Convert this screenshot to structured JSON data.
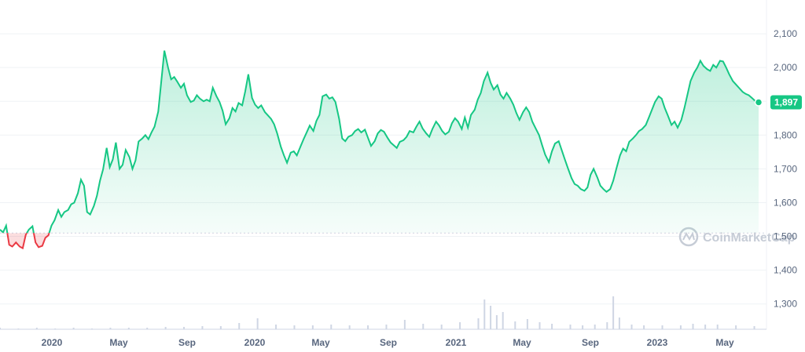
{
  "chart_data": {
    "type": "area",
    "title": "",
    "xlabel": "",
    "ylabel": "",
    "ylim": [
      1225,
      2200
    ],
    "y_ticks": [
      "1,300",
      "1,400",
      "1,500",
      "1,600",
      "1,700",
      "1,800",
      "1,900",
      "2,000",
      "2,100"
    ],
    "y_tick_values": [
      1300,
      1400,
      1500,
      1600,
      1700,
      1800,
      1900,
      2000,
      2100
    ],
    "x_ticks": [
      "2020",
      "May",
      "Sep",
      "2020",
      "May",
      "Sep",
      "2021",
      "May",
      "Sep",
      "2023",
      "May"
    ],
    "baseline": 1510,
    "grid": true,
    "colors": {
      "up": "#16c784",
      "down": "#ea3943",
      "volume": "#cfd6e4",
      "axis_text": "#58667e",
      "grid": "#eff2f5",
      "baseline": "#cfd6e4"
    },
    "current_price": 1897,
    "current_price_label": "1,897",
    "watermark": "CoinMarketCap",
    "series": [
      {
        "name": "",
        "values": [
          [
            0.0,
            1520
          ],
          [
            0.5,
            1512
          ],
          [
            1.0,
            1532
          ],
          [
            1.5,
            1475
          ],
          [
            2.0,
            1470
          ],
          [
            2.6,
            1482
          ],
          [
            3.2,
            1470
          ],
          [
            3.7,
            1465
          ],
          [
            4.2,
            1505
          ],
          [
            4.7,
            1520
          ],
          [
            5.3,
            1530
          ],
          [
            5.8,
            1482
          ],
          [
            6.3,
            1468
          ],
          [
            6.9,
            1472
          ],
          [
            7.4,
            1496
          ],
          [
            7.9,
            1503
          ],
          [
            8.4,
            1532
          ],
          [
            8.9,
            1548
          ],
          [
            9.5,
            1578
          ],
          [
            10.0,
            1558
          ],
          [
            10.5,
            1572
          ],
          [
            11.1,
            1578
          ],
          [
            11.6,
            1595
          ],
          [
            12.1,
            1600
          ],
          [
            12.7,
            1628
          ],
          [
            13.2,
            1668
          ],
          [
            13.7,
            1650
          ],
          [
            14.2,
            1572
          ],
          [
            14.7,
            1565
          ],
          [
            15.3,
            1590
          ],
          [
            15.8,
            1620
          ],
          [
            16.3,
            1665
          ],
          [
            16.8,
            1698
          ],
          [
            17.4,
            1762
          ],
          [
            17.9,
            1705
          ],
          [
            18.4,
            1728
          ],
          [
            18.9,
            1778
          ],
          [
            19.5,
            1700
          ],
          [
            20.0,
            1712
          ],
          [
            20.5,
            1756
          ],
          [
            21.1,
            1735
          ],
          [
            21.6,
            1700
          ],
          [
            22.1,
            1725
          ],
          [
            22.6,
            1781
          ],
          [
            23.2,
            1790
          ],
          [
            23.7,
            1800
          ],
          [
            24.2,
            1788
          ],
          [
            24.7,
            1808
          ],
          [
            25.2,
            1825
          ],
          [
            25.8,
            1870
          ],
          [
            26.3,
            1960
          ],
          [
            26.8,
            2050
          ],
          [
            27.4,
            2000
          ],
          [
            27.9,
            1965
          ],
          [
            28.4,
            1972
          ],
          [
            28.9,
            1958
          ],
          [
            29.5,
            1940
          ],
          [
            30.0,
            1952
          ],
          [
            30.5,
            1918
          ],
          [
            31.1,
            1898
          ],
          [
            31.6,
            1902
          ],
          [
            32.1,
            1918
          ],
          [
            32.6,
            1908
          ],
          [
            33.2,
            1900
          ],
          [
            33.7,
            1905
          ],
          [
            34.2,
            1900
          ],
          [
            34.7,
            1940
          ],
          [
            35.3,
            1915
          ],
          [
            35.8,
            1898
          ],
          [
            36.3,
            1872
          ],
          [
            36.8,
            1832
          ],
          [
            37.4,
            1850
          ],
          [
            37.9,
            1880
          ],
          [
            38.4,
            1870
          ],
          [
            38.9,
            1895
          ],
          [
            39.5,
            1888
          ],
          [
            40.0,
            1930
          ],
          [
            40.5,
            1980
          ],
          [
            41.1,
            1910
          ],
          [
            41.6,
            1890
          ],
          [
            42.1,
            1880
          ],
          [
            42.6,
            1888
          ],
          [
            43.2,
            1868
          ],
          [
            43.7,
            1858
          ],
          [
            44.2,
            1848
          ],
          [
            44.7,
            1832
          ],
          [
            45.2,
            1805
          ],
          [
            45.8,
            1765
          ],
          [
            46.3,
            1740
          ],
          [
            46.8,
            1718
          ],
          [
            47.4,
            1748
          ],
          [
            47.9,
            1752
          ],
          [
            48.4,
            1740
          ],
          [
            48.9,
            1762
          ],
          [
            49.5,
            1788
          ],
          [
            50.0,
            1808
          ],
          [
            50.5,
            1828
          ],
          [
            51.1,
            1812
          ],
          [
            51.6,
            1842
          ],
          [
            52.1,
            1860
          ],
          [
            52.6,
            1915
          ],
          [
            53.2,
            1920
          ],
          [
            53.7,
            1908
          ],
          [
            54.2,
            1912
          ],
          [
            54.7,
            1898
          ],
          [
            55.3,
            1848
          ],
          [
            55.8,
            1790
          ],
          [
            56.3,
            1782
          ],
          [
            56.8,
            1795
          ],
          [
            57.4,
            1800
          ],
          [
            57.9,
            1812
          ],
          [
            58.4,
            1818
          ],
          [
            58.9,
            1808
          ],
          [
            59.5,
            1816
          ],
          [
            60.0,
            1792
          ],
          [
            60.5,
            1768
          ],
          [
            61.1,
            1782
          ],
          [
            61.6,
            1805
          ],
          [
            62.1,
            1815
          ],
          [
            62.6,
            1810
          ],
          [
            63.2,
            1792
          ],
          [
            63.7,
            1778
          ],
          [
            64.2,
            1770
          ],
          [
            64.7,
            1762
          ],
          [
            65.2,
            1780
          ],
          [
            65.8,
            1785
          ],
          [
            66.3,
            1795
          ],
          [
            66.8,
            1812
          ],
          [
            67.4,
            1808
          ],
          [
            67.9,
            1825
          ],
          [
            68.4,
            1840
          ],
          [
            68.9,
            1820
          ],
          [
            69.5,
            1805
          ],
          [
            70.0,
            1795
          ],
          [
            70.5,
            1818
          ],
          [
            71.1,
            1840
          ],
          [
            71.6,
            1828
          ],
          [
            72.1,
            1812
          ],
          [
            72.6,
            1802
          ],
          [
            73.2,
            1810
          ],
          [
            73.7,
            1835
          ],
          [
            74.2,
            1850
          ],
          [
            74.7,
            1840
          ],
          [
            75.3,
            1818
          ],
          [
            75.8,
            1852
          ],
          [
            76.3,
            1822
          ],
          [
            76.8,
            1860
          ],
          [
            77.4,
            1875
          ],
          [
            77.9,
            1905
          ],
          [
            78.4,
            1925
          ],
          [
            78.9,
            1960
          ],
          [
            79.5,
            1985
          ],
          [
            80.0,
            1955
          ],
          [
            80.5,
            1935
          ],
          [
            81.1,
            1948
          ],
          [
            81.6,
            1920
          ],
          [
            82.1,
            1908
          ],
          [
            82.6,
            1925
          ],
          [
            83.2,
            1908
          ],
          [
            83.7,
            1890
          ],
          [
            84.2,
            1865
          ],
          [
            84.7,
            1845
          ],
          [
            85.3,
            1868
          ],
          [
            85.8,
            1882
          ],
          [
            86.3,
            1868
          ],
          [
            86.8,
            1840
          ],
          [
            87.4,
            1818
          ],
          [
            87.9,
            1800
          ],
          [
            88.4,
            1770
          ],
          [
            88.9,
            1742
          ],
          [
            89.5,
            1720
          ],
          [
            90.0,
            1752
          ],
          [
            90.5,
            1775
          ],
          [
            91.1,
            1782
          ],
          [
            91.6,
            1755
          ],
          [
            92.1,
            1728
          ],
          [
            92.6,
            1702
          ],
          [
            93.2,
            1672
          ],
          [
            93.7,
            1655
          ],
          [
            94.2,
            1650
          ],
          [
            94.7,
            1640
          ],
          [
            95.3,
            1635
          ],
          [
            95.8,
            1645
          ],
          [
            96.3,
            1682
          ],
          [
            96.8,
            1700
          ],
          [
            97.4,
            1675
          ],
          [
            97.9,
            1650
          ],
          [
            98.4,
            1640
          ],
          [
            98.9,
            1632
          ],
          [
            99.5,
            1640
          ],
          [
            100.0,
            1665
          ],
          [
            100.5,
            1700
          ],
          [
            101.1,
            1740
          ],
          [
            101.6,
            1760
          ],
          [
            102.1,
            1752
          ],
          [
            102.6,
            1780
          ],
          [
            103.2,
            1790
          ],
          [
            103.7,
            1800
          ],
          [
            104.2,
            1812
          ],
          [
            104.7,
            1818
          ],
          [
            105.3,
            1830
          ],
          [
            105.8,
            1852
          ],
          [
            106.3,
            1875
          ],
          [
            106.8,
            1898
          ],
          [
            107.4,
            1915
          ],
          [
            107.9,
            1908
          ],
          [
            108.4,
            1880
          ],
          [
            108.9,
            1858
          ],
          [
            109.5,
            1830
          ],
          [
            110.0,
            1840
          ],
          [
            110.5,
            1822
          ],
          [
            111.1,
            1845
          ],
          [
            111.6,
            1880
          ],
          [
            112.1,
            1920
          ],
          [
            112.6,
            1960
          ],
          [
            113.2,
            1985
          ],
          [
            113.7,
            2000
          ],
          [
            114.2,
            2020
          ],
          [
            114.7,
            2005
          ],
          [
            115.3,
            1995
          ],
          [
            115.8,
            1990
          ],
          [
            116.3,
            2008
          ],
          [
            116.8,
            2000
          ],
          [
            117.4,
            2020
          ],
          [
            117.9,
            2018
          ],
          [
            118.4,
            2000
          ],
          [
            118.9,
            1980
          ],
          [
            119.5,
            1960
          ],
          [
            120.0,
            1950
          ],
          [
            120.5,
            1940
          ],
          [
            121.1,
            1928
          ],
          [
            121.6,
            1922
          ],
          [
            122.1,
            1918
          ],
          [
            122.6,
            1910
          ],
          [
            123.2,
            1900
          ],
          [
            123.7,
            1897
          ]
        ]
      }
    ],
    "volume": [
      [
        0,
        2
      ],
      [
        3,
        1
      ],
      [
        6,
        2
      ],
      [
        9,
        1
      ],
      [
        12,
        2
      ],
      [
        15,
        1
      ],
      [
        18,
        2
      ],
      [
        21,
        2
      ],
      [
        24,
        2
      ],
      [
        27,
        3
      ],
      [
        30,
        3
      ],
      [
        33,
        4
      ],
      [
        36,
        4
      ],
      [
        39,
        8
      ],
      [
        42,
        14
      ],
      [
        45,
        6
      ],
      [
        48,
        5
      ],
      [
        51,
        5
      ],
      [
        54,
        6
      ],
      [
        57,
        5
      ],
      [
        60,
        5
      ],
      [
        63,
        6
      ],
      [
        66,
        12
      ],
      [
        69,
        7
      ],
      [
        72,
        6
      ],
      [
        75,
        9
      ],
      [
        78,
        14
      ],
      [
        79,
        38
      ],
      [
        80,
        30
      ],
      [
        81,
        18
      ],
      [
        82,
        22
      ],
      [
        84,
        10
      ],
      [
        86,
        13
      ],
      [
        88,
        9
      ],
      [
        90,
        7
      ],
      [
        93,
        6
      ],
      [
        95,
        5
      ],
      [
        97,
        6
      ],
      [
        99,
        9
      ],
      [
        100,
        42
      ],
      [
        101,
        15
      ],
      [
        103,
        6
      ],
      [
        105,
        5
      ],
      [
        108,
        5
      ],
      [
        111,
        5
      ],
      [
        113,
        7
      ],
      [
        115,
        6
      ],
      [
        117,
        6
      ],
      [
        120,
        5
      ],
      [
        123,
        4
      ]
    ]
  }
}
